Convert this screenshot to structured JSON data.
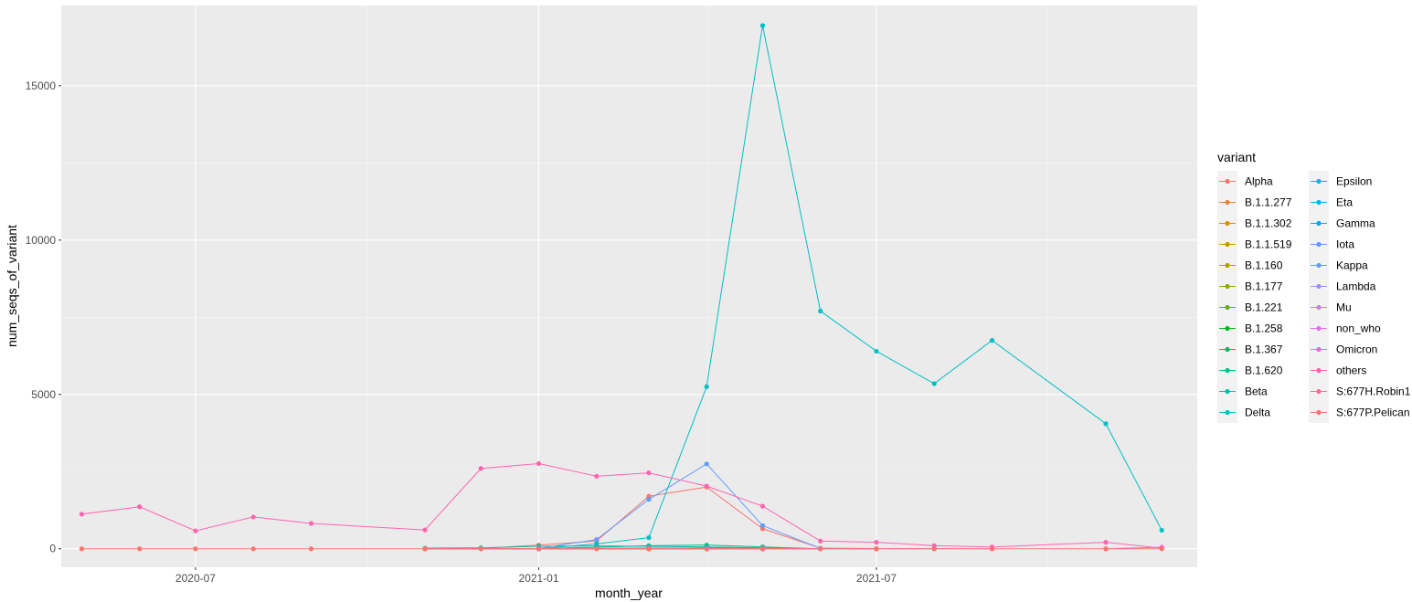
{
  "chart_data": {
    "type": "line",
    "xlabel": "month_year",
    "ylabel": "num_seqs_of_variant",
    "xlim": [
      "2020-04-20",
      "2021-12-20"
    ],
    "ylim": [
      -600,
      17600
    ],
    "x_ticks": [
      {
        "value": "2020-07-01",
        "label": "2020-07"
      },
      {
        "value": "2021-01-01",
        "label": "2021-01"
      },
      {
        "value": "2021-07-01",
        "label": "2021-07"
      }
    ],
    "y_ticks": [
      {
        "value": 0,
        "label": "0"
      },
      {
        "value": 5000,
        "label": "5000"
      },
      {
        "value": 10000,
        "label": "10000"
      },
      {
        "value": 15000,
        "label": "15000"
      }
    ],
    "grid": true,
    "legend": {
      "title": "variant",
      "placement": "right",
      "columns": 2
    },
    "series": [
      {
        "name": "Alpha",
        "color": "#F8766D",
        "points": [
          [
            "2020-11-01",
            0
          ],
          [
            "2020-12-01",
            10
          ],
          [
            "2021-01-01",
            120
          ],
          [
            "2021-02-01",
            250
          ],
          [
            "2021-03-01",
            1700
          ],
          [
            "2021-04-01",
            2000
          ],
          [
            "2021-05-01",
            650
          ],
          [
            "2021-06-01",
            20
          ],
          [
            "2021-07-01",
            5
          ],
          [
            "2021-08-01",
            0
          ]
        ]
      },
      {
        "name": "B.1.1.277",
        "color": "#EC8239",
        "points": [
          [
            "2020-11-01",
            0
          ],
          [
            "2021-01-01",
            5
          ],
          [
            "2021-03-01",
            5
          ],
          [
            "2021-05-01",
            0
          ]
        ]
      },
      {
        "name": "B.1.1.302",
        "color": "#DB8E00",
        "points": [
          [
            "2020-11-01",
            0
          ],
          [
            "2021-01-01",
            3
          ],
          [
            "2021-03-01",
            3
          ],
          [
            "2021-05-01",
            0
          ]
        ]
      },
      {
        "name": "B.1.1.519",
        "color": "#C79800",
        "points": [
          [
            "2020-11-01",
            0
          ],
          [
            "2021-01-01",
            3
          ],
          [
            "2021-03-01",
            3
          ],
          [
            "2021-05-01",
            0
          ]
        ]
      },
      {
        "name": "B.1.160",
        "color": "#AEA200",
        "points": [
          [
            "2020-11-01",
            0
          ],
          [
            "2021-01-01",
            3
          ],
          [
            "2021-03-01",
            3
          ],
          [
            "2021-05-01",
            0
          ]
        ]
      },
      {
        "name": "B.1.177",
        "color": "#8FAA00",
        "points": [
          [
            "2020-11-01",
            0
          ],
          [
            "2021-01-01",
            3
          ],
          [
            "2021-03-01",
            3
          ],
          [
            "2021-05-01",
            0
          ]
        ]
      },
      {
        "name": "B.1.221",
        "color": "#64B200",
        "points": [
          [
            "2020-11-01",
            0
          ],
          [
            "2021-01-01",
            3
          ],
          [
            "2021-03-01",
            3
          ],
          [
            "2021-05-01",
            0
          ]
        ]
      },
      {
        "name": "B.1.258",
        "color": "#00B81B",
        "points": [
          [
            "2020-11-01",
            0
          ],
          [
            "2021-01-01",
            3
          ],
          [
            "2021-03-01",
            3
          ],
          [
            "2021-05-01",
            0
          ]
        ]
      },
      {
        "name": "B.1.367",
        "color": "#00BD5C",
        "points": [
          [
            "2020-11-01",
            0
          ],
          [
            "2021-01-01",
            3
          ],
          [
            "2021-03-01",
            3
          ],
          [
            "2021-05-01",
            0
          ]
        ]
      },
      {
        "name": "B.1.620",
        "color": "#00C085",
        "points": [
          [
            "2021-01-01",
            0
          ],
          [
            "2021-03-01",
            100
          ],
          [
            "2021-04-01",
            120
          ],
          [
            "2021-05-01",
            60
          ],
          [
            "2021-06-01",
            0
          ]
        ]
      },
      {
        "name": "Beta",
        "color": "#00C1A7",
        "points": [
          [
            "2020-11-01",
            20
          ],
          [
            "2020-12-01",
            30
          ],
          [
            "2021-01-01",
            80
          ],
          [
            "2021-02-01",
            90
          ],
          [
            "2021-03-01",
            80
          ],
          [
            "2021-04-01",
            60
          ],
          [
            "2021-05-01",
            30
          ],
          [
            "2021-06-01",
            0
          ]
        ]
      },
      {
        "name": "Delta",
        "color": "#00BFC4",
        "points": [
          [
            "2021-01-01",
            0
          ],
          [
            "2021-02-01",
            160
          ],
          [
            "2021-03-01",
            360
          ],
          [
            "2021-04-01",
            5250
          ],
          [
            "2021-05-01",
            16950
          ],
          [
            "2021-06-01",
            7700
          ],
          [
            "2021-07-01",
            6400
          ],
          [
            "2021-08-01",
            5350
          ],
          [
            "2021-09-01",
            6750
          ],
          [
            "2021-11-01",
            4050
          ],
          [
            "2021-12-01",
            600
          ]
        ]
      },
      {
        "name": "Epsilon",
        "color": "#00BADE",
        "points": [
          [
            "2021-01-01",
            0
          ],
          [
            "2021-03-01",
            20
          ],
          [
            "2021-04-01",
            10
          ],
          [
            "2021-05-01",
            0
          ]
        ]
      },
      {
        "name": "Eta",
        "color": "#00B2F3",
        "points": [
          [
            "2021-01-01",
            0
          ],
          [
            "2021-03-01",
            15
          ],
          [
            "2021-04-01",
            20
          ],
          [
            "2021-05-01",
            5
          ],
          [
            "2021-06-01",
            0
          ]
        ]
      },
      {
        "name": "Gamma",
        "color": "#00A6FF",
        "points": [
          [
            "2021-01-01",
            0
          ],
          [
            "2021-03-01",
            10
          ],
          [
            "2021-04-01",
            30
          ],
          [
            "2021-05-01",
            10
          ],
          [
            "2021-06-01",
            0
          ]
        ]
      },
      {
        "name": "Iota",
        "color": "#619CFF",
        "points": [
          [
            "2021-01-01",
            0
          ],
          [
            "2021-03-01",
            5
          ],
          [
            "2021-04-01",
            5
          ],
          [
            "2021-05-01",
            0
          ]
        ]
      },
      {
        "name": "Kappa",
        "color": "#619CFF",
        "points": [
          [
            "2020-12-01",
            0
          ],
          [
            "2021-01-01",
            10
          ],
          [
            "2021-02-01",
            300
          ],
          [
            "2021-03-01",
            1600
          ],
          [
            "2021-04-01",
            2750
          ],
          [
            "2021-05-01",
            750
          ],
          [
            "2021-06-01",
            10
          ],
          [
            "2021-07-01",
            0
          ]
        ]
      },
      {
        "name": "Lambda",
        "color": "#9F8CFF",
        "points": [
          [
            "2021-04-01",
            0
          ],
          [
            "2021-05-01",
            0
          ],
          [
            "2021-06-01",
            5
          ],
          [
            "2021-07-01",
            0
          ]
        ]
      },
      {
        "name": "Mu",
        "color": "#C77CFF",
        "points": [
          [
            "2021-04-01",
            0
          ],
          [
            "2021-06-01",
            5
          ],
          [
            "2021-08-01",
            5
          ],
          [
            "2021-09-01",
            0
          ]
        ]
      },
      {
        "name": "non_who",
        "color": "#E76BF3",
        "points": [
          [
            "2020-11-01",
            0
          ],
          [
            "2021-01-01",
            5
          ],
          [
            "2021-03-01",
            5
          ],
          [
            "2021-05-01",
            0
          ]
        ]
      },
      {
        "name": "Omicron",
        "color": "#F564E3",
        "points": [
          [
            "2021-11-01",
            0
          ],
          [
            "2021-12-01",
            50
          ]
        ]
      },
      {
        "name": "others",
        "color": "#FF64B0",
        "points": [
          [
            "2020-05-01",
            1120
          ],
          [
            "2020-06-01",
            1360
          ],
          [
            "2020-07-01",
            580
          ],
          [
            "2020-08-01",
            1030
          ],
          [
            "2020-09-01",
            820
          ],
          [
            "2020-11-01",
            610
          ],
          [
            "2020-12-01",
            2600
          ],
          [
            "2021-01-01",
            2760
          ],
          [
            "2021-02-01",
            2350
          ],
          [
            "2021-03-01",
            2460
          ],
          [
            "2021-04-01",
            2030
          ],
          [
            "2021-05-01",
            1380
          ],
          [
            "2021-06-01",
            250
          ],
          [
            "2021-07-01",
            210
          ],
          [
            "2021-08-01",
            100
          ],
          [
            "2021-09-01",
            60
          ],
          [
            "2021-11-01",
            210
          ],
          [
            "2021-12-01",
            20
          ]
        ]
      },
      {
        "name": "S:677H.Robin1",
        "color": "#FF6C91",
        "points": [
          [
            "2020-11-01",
            0
          ],
          [
            "2021-01-01",
            5
          ],
          [
            "2021-03-01",
            10
          ],
          [
            "2021-05-01",
            5
          ],
          [
            "2021-07-01",
            0
          ]
        ]
      },
      {
        "name": "S:677P.Pelican",
        "color": "#F8766D",
        "points": [
          [
            "2020-05-01",
            0
          ],
          [
            "2020-06-01",
            0
          ],
          [
            "2020-07-01",
            0
          ],
          [
            "2020-08-01",
            0
          ],
          [
            "2020-09-01",
            0
          ],
          [
            "2020-11-01",
            0
          ],
          [
            "2020-12-01",
            0
          ],
          [
            "2021-01-01",
            0
          ],
          [
            "2021-02-01",
            0
          ],
          [
            "2021-03-01",
            0
          ],
          [
            "2021-04-01",
            0
          ],
          [
            "2021-05-01",
            0
          ],
          [
            "2021-06-01",
            0
          ],
          [
            "2021-07-01",
            0
          ],
          [
            "2021-08-01",
            0
          ],
          [
            "2021-09-01",
            0
          ],
          [
            "2021-11-01",
            0
          ],
          [
            "2021-12-01",
            0
          ]
        ]
      }
    ]
  }
}
